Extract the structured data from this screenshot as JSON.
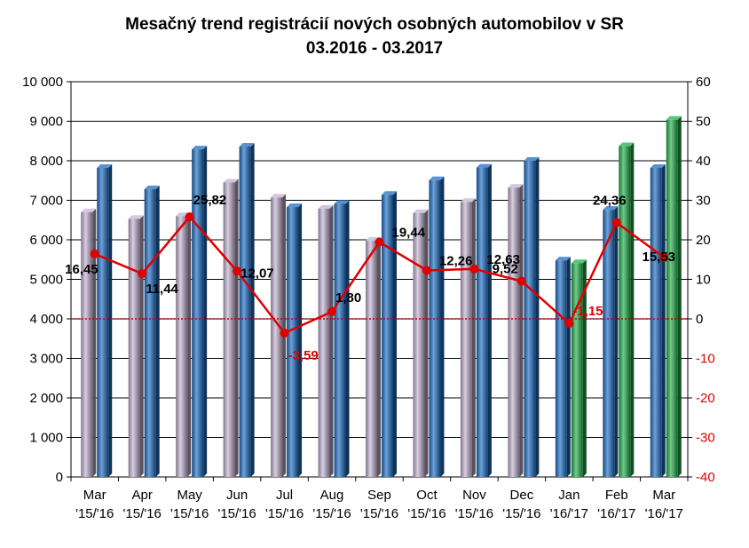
{
  "chart_data": {
    "type": "bar+line",
    "title": "Mesačný  trend registrácií  nových osobných  automobilov  v SR",
    "subtitle": "03.2016  - 03.2017",
    "categories": [
      {
        "month": "Mar",
        "period": "'15/'16"
      },
      {
        "month": "Apr",
        "period": "'15/'16"
      },
      {
        "month": "May",
        "period": "'15/'16"
      },
      {
        "month": "Jun",
        "period": "'15/'16"
      },
      {
        "month": "Jul",
        "period": "'15/'16"
      },
      {
        "month": "Aug",
        "period": "'15/'16"
      },
      {
        "month": "Sep",
        "period": "'15/'16"
      },
      {
        "month": "Oct",
        "period": "'15/'16"
      },
      {
        "month": "Nov",
        "period": "'15/'16"
      },
      {
        "month": "Dec",
        "period": "'15/'16"
      },
      {
        "month": "Jan",
        "period": "'16/'17"
      },
      {
        "month": "Feb",
        "period": "'16/'17"
      },
      {
        "month": "Mar",
        "period": "'16/'17"
      }
    ],
    "series": [
      {
        "kind": "bar",
        "axis": "left",
        "values": [
          6700,
          6530,
          6600,
          7450,
          7070,
          6790,
          5980,
          6680,
          6960,
          7320,
          5480,
          6760,
          7820
        ],
        "colors": [
          "#c4b3d2",
          "#c4b3d2",
          "#c4b3d2",
          "#c4b3d2",
          "#c4b3d2",
          "#c4b3d2",
          "#c4b3d2",
          "#c4b3d2",
          "#c4b3d2",
          "#c4b3d2",
          "#1f6fc4",
          "#1f6fc4",
          "#1f6fc4"
        ]
      },
      {
        "kind": "bar",
        "axis": "left",
        "values": [
          7820,
          7280,
          8290,
          8360,
          6830,
          6910,
          7140,
          7510,
          7830,
          8000,
          5410,
          8370,
          9040
        ],
        "colors": [
          "#1f6fc4",
          "#1f6fc4",
          "#1f6fc4",
          "#1f6fc4",
          "#1f6fc4",
          "#1f6fc4",
          "#1f6fc4",
          "#1f6fc4",
          "#1f6fc4",
          "#1f6fc4",
          "#22b14c",
          "#22b14c",
          "#22b14c"
        ]
      },
      {
        "kind": "line",
        "axis": "right",
        "color": "#e00000",
        "values": [
          16.45,
          11.44,
          25.82,
          12.07,
          -3.59,
          1.8,
          19.44,
          12.26,
          12.63,
          9.52,
          -1.15,
          24.36,
          15.53
        ],
        "labels": [
          "16,45",
          "11,44",
          "25,82",
          "12,07",
          "-3,59",
          "1,80",
          "19,44",
          "12,26",
          "12,63",
          "9,52",
          "-1,15",
          "24,36",
          "15,53"
        ]
      }
    ],
    "y_left": {
      "min": 0,
      "max": 10000,
      "ticks": [
        "0",
        "1 000",
        "2 000",
        "3 000",
        "4 000",
        "5 000",
        "6 000",
        "7 000",
        "8 000",
        "9 000",
        "10 000"
      ]
    },
    "y_right": {
      "min": -40,
      "max": 60,
      "ticks": [
        "-40",
        "-30",
        "-20",
        "-10",
        "0",
        "10",
        "20",
        "30",
        "40",
        "50",
        "60"
      ]
    },
    "zero_line": {
      "value": 0,
      "color": "#c00000"
    },
    "grid": "horizontal"
  }
}
